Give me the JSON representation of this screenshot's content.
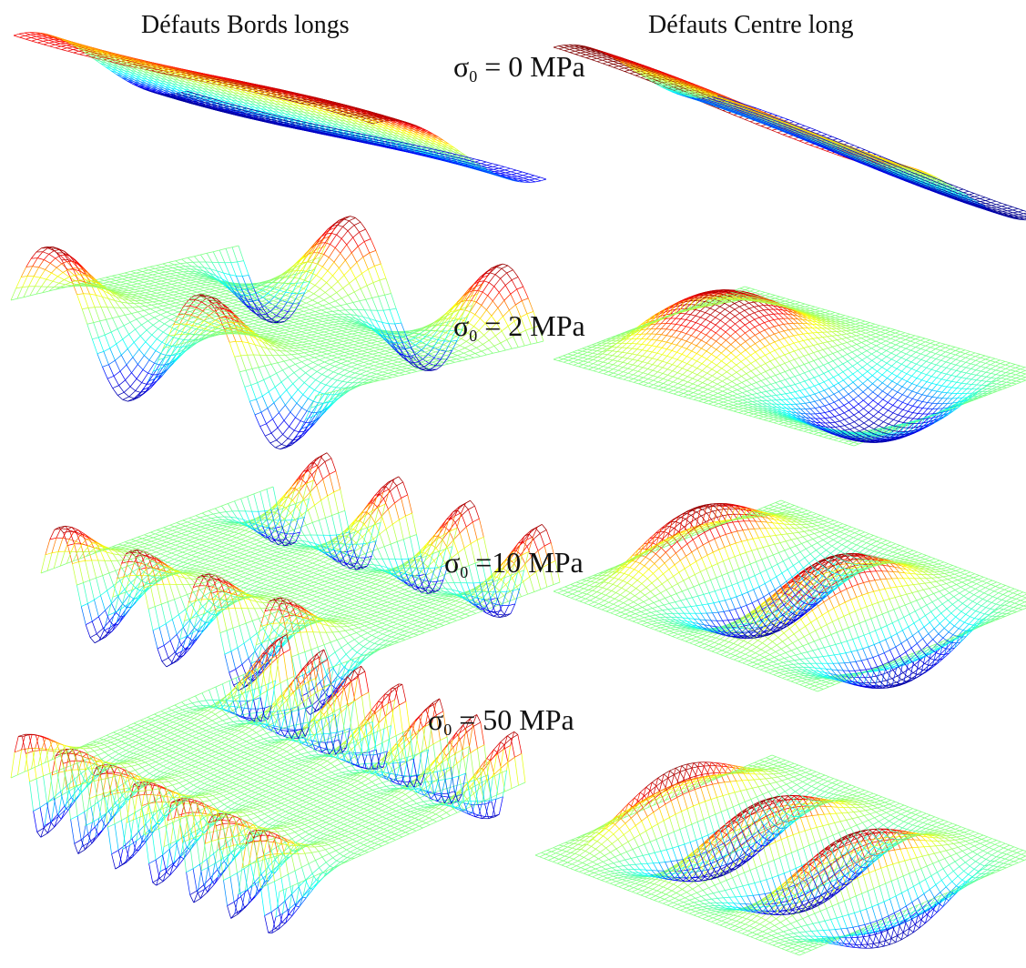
{
  "headers": {
    "left": "Défauts Bords longs",
    "right": "Défauts Centre long"
  },
  "rows": [
    {
      "sigma": "σ",
      "sub": "0",
      "eq": " = 0 MPa"
    },
    {
      "sigma": "σ",
      "sub": "0",
      "eq": " = 2 MPa"
    },
    {
      "sigma": "σ",
      "sub": "0",
      "eq": " =10 MPa"
    },
    {
      "sigma": "σ",
      "sub": "0",
      "eq": " = 50 MPa"
    }
  ],
  "colors": {
    "colormap": [
      "#00008f",
      "#0000ff",
      "#00ffff",
      "#7fff7f",
      "#ffff00",
      "#ff0000",
      "#7f0000"
    ],
    "mesh_mid": "#88c888"
  },
  "surfaces": [
    {
      "row": 0,
      "col": "left",
      "mode": "edge-tilt",
      "waves": 0
    },
    {
      "row": 0,
      "col": "right",
      "mode": "center-tilt",
      "waves": 0
    },
    {
      "row": 1,
      "col": "left",
      "mode": "edge-waves",
      "waves": 2
    },
    {
      "row": 1,
      "col": "right",
      "mode": "center-waves",
      "waves": 1
    },
    {
      "row": 2,
      "col": "left",
      "mode": "edge-waves",
      "waves": 4
    },
    {
      "row": 2,
      "col": "right",
      "mode": "center-waves",
      "waves": 2
    },
    {
      "row": 3,
      "col": "left",
      "mode": "edge-waves",
      "waves": 7
    },
    {
      "row": 3,
      "col": "right",
      "mode": "center-waves",
      "waves": 3
    }
  ]
}
